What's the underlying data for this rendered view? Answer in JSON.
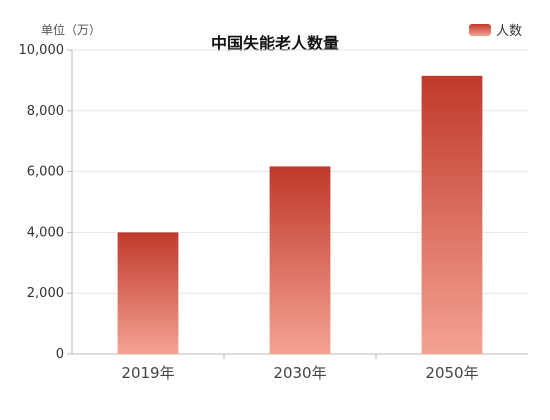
{
  "chart_data": {
    "type": "bar",
    "title": "中国失能老人数量",
    "unit_label": "单位（万）",
    "categories": [
      "2019年",
      "2030年",
      "2050年"
    ],
    "series": [
      {
        "name": "人数",
        "values": [
          4000,
          6170,
          9150
        ]
      }
    ],
    "ylim": [
      0,
      10000
    ],
    "yticks": [
      "0",
      "2,000",
      "4,000",
      "6,000",
      "8,000",
      "10,000"
    ],
    "grid": true,
    "legend_position": "top-right",
    "colors": {
      "bar_top": "#c0392b",
      "bar_bottom": "#f4a293",
      "grid": "#e6e6e6",
      "axis": "#bbbbbb"
    }
  }
}
